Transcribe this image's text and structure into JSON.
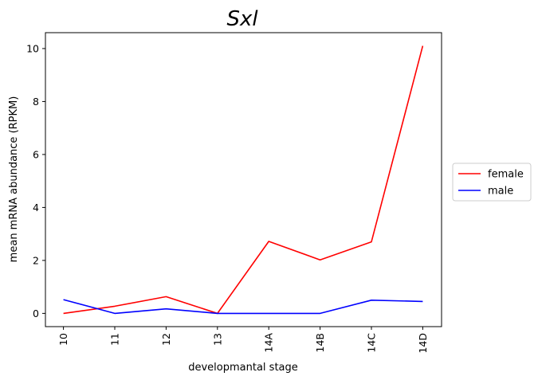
{
  "chart_data": {
    "type": "line",
    "title": "Sxl",
    "xlabel": "developmantal stage",
    "ylabel": "mean mRNA abundance (RPKM)",
    "categories": [
      "10",
      "11",
      "12",
      "13",
      "14A",
      "14B",
      "14C",
      "14D"
    ],
    "y_ticks": [
      0,
      2,
      4,
      6,
      8,
      10
    ],
    "ylim": [
      -0.5,
      10.6
    ],
    "grid": false,
    "legend_position": "center-right outside",
    "series": [
      {
        "name": "female",
        "color": "#ff0000",
        "values": [
          0.0,
          0.27,
          0.63,
          0.0,
          2.72,
          2.02,
          2.7,
          10.1
        ]
      },
      {
        "name": "male",
        "color": "#0000ff",
        "values": [
          0.52,
          0.0,
          0.17,
          0.0,
          0.0,
          0.0,
          0.5,
          0.45
        ]
      }
    ]
  }
}
